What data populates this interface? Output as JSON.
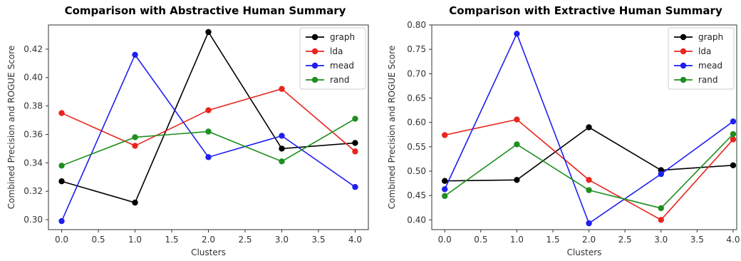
{
  "chart_data": [
    {
      "type": "line",
      "title": "Comparison with Abstractive Human Summary",
      "xlabel": "Clusters",
      "ylabel": "Combined Precision and ROGUE Score",
      "x": [
        0,
        1,
        2,
        3,
        4
      ],
      "xlim": [
        -0.18,
        4.18
      ],
      "ylim": [
        0.293,
        0.437
      ],
      "xticks": [
        "0.0",
        "0.5",
        "1.0",
        "1.5",
        "2.0",
        "2.5",
        "3.0",
        "3.5",
        "4.0"
      ],
      "yticks": [
        "0.30",
        "0.32",
        "0.34",
        "0.36",
        "0.38",
        "0.40",
        "0.42"
      ],
      "grid": false,
      "legend": "top-right",
      "series": [
        {
          "name": "graph",
          "color": "#000000",
          "values": [
            0.327,
            0.312,
            0.432,
            0.35,
            0.354
          ]
        },
        {
          "name": "lda",
          "color": "#e8251e",
          "values": [
            0.375,
            0.352,
            0.377,
            0.392,
            0.348
          ]
        },
        {
          "name": "mead",
          "color": "#1f1ff0",
          "values": [
            0.299,
            0.416,
            0.344,
            0.359,
            0.323
          ]
        },
        {
          "name": "rand",
          "color": "#1e8f1e",
          "values": [
            0.338,
            0.358,
            0.362,
            0.341,
            0.371
          ]
        }
      ]
    },
    {
      "type": "line",
      "title": "Comparison with Extractive Human Summary",
      "xlabel": "Clusters",
      "ylabel": "Combined Precision and ROGUE Score",
      "x": [
        0,
        1,
        2,
        3,
        4
      ],
      "xlim": [
        -0.18,
        4.05
      ],
      "ylim": [
        0.38,
        0.8
      ],
      "xticks": [
        "0.0",
        "0.5",
        "1.0",
        "1.5",
        "2.0",
        "2.5",
        "3.0",
        "3.5",
        "4.0"
      ],
      "yticks": [
        "0.40",
        "0.45",
        "0.50",
        "0.55",
        "0.60",
        "0.65",
        "0.70",
        "0.75",
        "0.80"
      ],
      "grid": false,
      "legend": "top-right",
      "series": [
        {
          "name": "graph",
          "color": "#000000",
          "values": [
            0.48,
            0.482,
            0.59,
            0.502,
            0.512
          ]
        },
        {
          "name": "lda",
          "color": "#e8251e",
          "values": [
            0.574,
            0.606,
            0.482,
            0.4,
            0.565
          ]
        },
        {
          "name": "mead",
          "color": "#1f1ff0",
          "values": [
            0.463,
            0.782,
            0.393,
            0.494,
            0.602
          ]
        },
        {
          "name": "rand",
          "color": "#1e8f1e",
          "values": [
            0.449,
            0.555,
            0.461,
            0.424,
            0.576
          ]
        }
      ]
    }
  ]
}
